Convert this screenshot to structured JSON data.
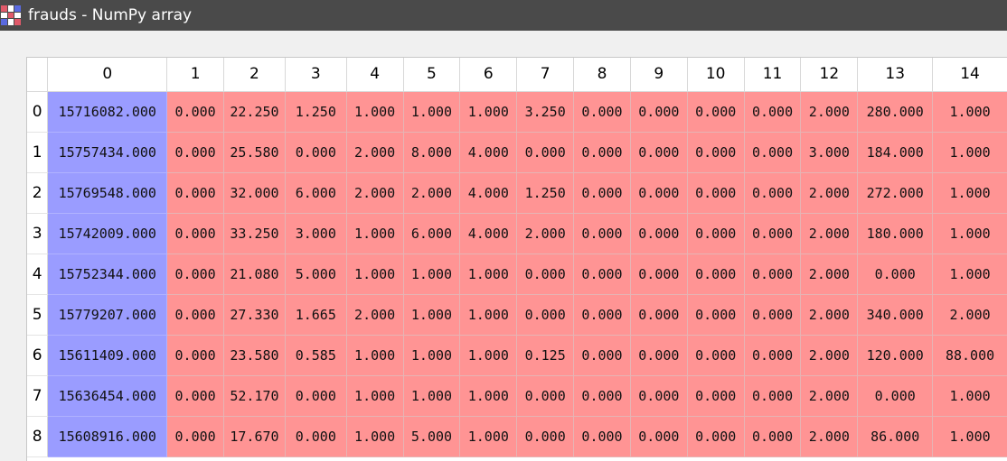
{
  "window": {
    "title": "frauds - NumPy array",
    "icon_colors": [
      "#e05a6a",
      "#ffffff",
      "#5a6ae0",
      "#ffffff",
      "#e05a6a",
      "#ffffff",
      "#5a6ae0",
      "#ffffff",
      "#e05a6a"
    ]
  },
  "colors": {
    "low": "#9a9cff",
    "high": "#ff9494"
  },
  "table": {
    "columns": [
      "0",
      "1",
      "2",
      "3",
      "4",
      "5",
      "6",
      "7",
      "8",
      "9",
      "10",
      "11",
      "12",
      "13",
      "14"
    ],
    "rows": [
      {
        "index": "0",
        "cells": [
          "15716082.000",
          "0.000",
          "22.250",
          "1.250",
          "1.000",
          "1.000",
          "1.000",
          "3.250",
          "0.000",
          "0.000",
          "0.000",
          "0.000",
          "2.000",
          "280.000",
          "1.000"
        ]
      },
      {
        "index": "1",
        "cells": [
          "15757434.000",
          "0.000",
          "25.580",
          "0.000",
          "2.000",
          "8.000",
          "4.000",
          "0.000",
          "0.000",
          "0.000",
          "0.000",
          "0.000",
          "3.000",
          "184.000",
          "1.000"
        ]
      },
      {
        "index": "2",
        "cells": [
          "15769548.000",
          "0.000",
          "32.000",
          "6.000",
          "2.000",
          "2.000",
          "4.000",
          "1.250",
          "0.000",
          "0.000",
          "0.000",
          "0.000",
          "2.000",
          "272.000",
          "1.000"
        ]
      },
      {
        "index": "3",
        "cells": [
          "15742009.000",
          "0.000",
          "33.250",
          "3.000",
          "1.000",
          "6.000",
          "4.000",
          "2.000",
          "0.000",
          "0.000",
          "0.000",
          "0.000",
          "2.000",
          "180.000",
          "1.000"
        ]
      },
      {
        "index": "4",
        "cells": [
          "15752344.000",
          "0.000",
          "21.080",
          "5.000",
          "1.000",
          "1.000",
          "1.000",
          "0.000",
          "0.000",
          "0.000",
          "0.000",
          "0.000",
          "2.000",
          "0.000",
          "1.000"
        ]
      },
      {
        "index": "5",
        "cells": [
          "15779207.000",
          "0.000",
          "27.330",
          "1.665",
          "2.000",
          "1.000",
          "1.000",
          "0.000",
          "0.000",
          "0.000",
          "0.000",
          "0.000",
          "2.000",
          "340.000",
          "2.000"
        ]
      },
      {
        "index": "6",
        "cells": [
          "15611409.000",
          "0.000",
          "23.580",
          "0.585",
          "1.000",
          "1.000",
          "1.000",
          "0.125",
          "0.000",
          "0.000",
          "0.000",
          "0.000",
          "2.000",
          "120.000",
          "88.000"
        ]
      },
      {
        "index": "7",
        "cells": [
          "15636454.000",
          "0.000",
          "52.170",
          "0.000",
          "1.000",
          "1.000",
          "1.000",
          "0.000",
          "0.000",
          "0.000",
          "0.000",
          "0.000",
          "2.000",
          "0.000",
          "1.000"
        ]
      },
      {
        "index": "8",
        "cells": [
          "15608916.000",
          "0.000",
          "17.670",
          "0.000",
          "1.000",
          "5.000",
          "1.000",
          "0.000",
          "0.000",
          "0.000",
          "0.000",
          "0.000",
          "2.000",
          "86.000",
          "1.000"
        ]
      }
    ]
  }
}
